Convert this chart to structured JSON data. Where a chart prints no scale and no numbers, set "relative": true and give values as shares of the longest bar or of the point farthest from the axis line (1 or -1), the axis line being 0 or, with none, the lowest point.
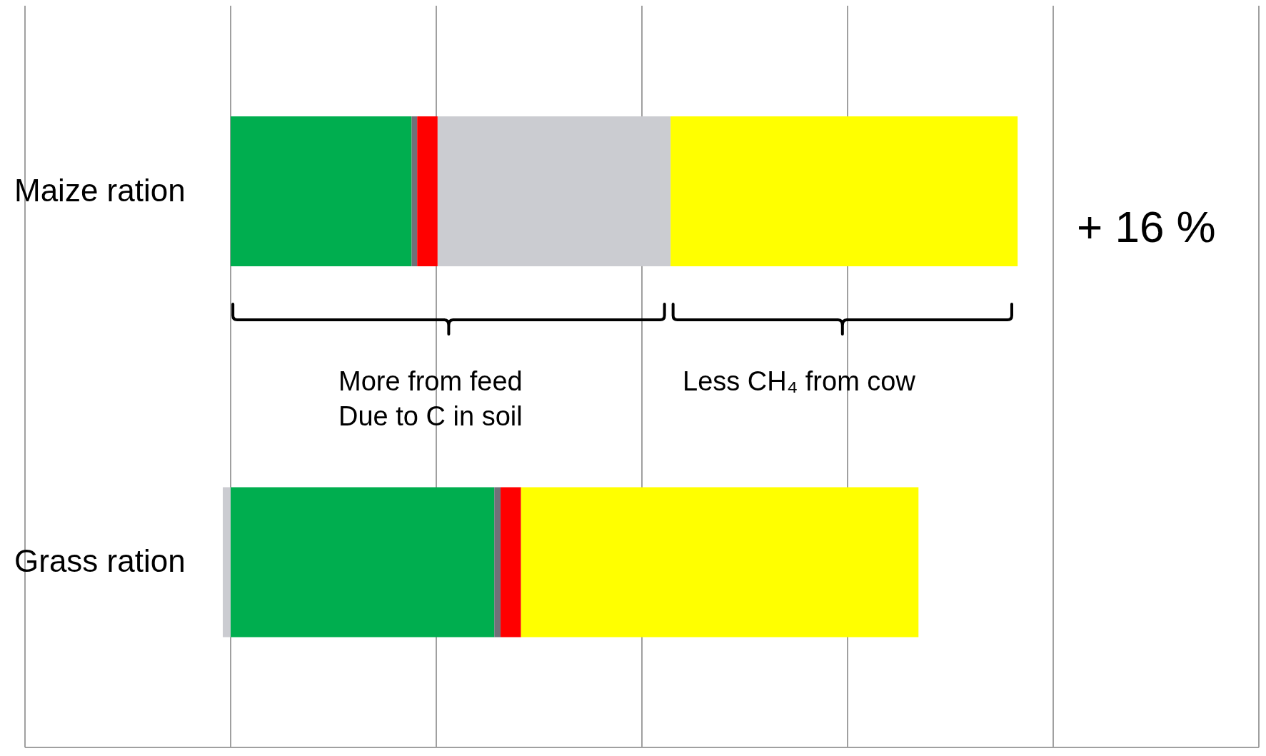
{
  "chart_data": {
    "type": "bar",
    "orientation": "horizontal",
    "stacked": true,
    "relative": true,
    "grid": "x",
    "categories": [
      "Maize ration",
      "Grass ration"
    ],
    "series": [
      {
        "color": "#00ae4f",
        "values": [
          0.23,
          0.335
        ]
      },
      {
        "color": "#707078",
        "values": [
          0.007,
          0.008
        ]
      },
      {
        "color": "#ff0000",
        "values": [
          0.026,
          0.026
        ]
      },
      {
        "color": "#cbccd1",
        "values": [
          0.296,
          -0.01
        ]
      },
      {
        "color": "#ffff00",
        "values": [
          0.441,
          0.505
        ]
      }
    ],
    "annotations": [
      "+ 16 %",
      "More from feed\nDue to C in soil",
      "Less CH₄ from cow"
    ]
  }
}
